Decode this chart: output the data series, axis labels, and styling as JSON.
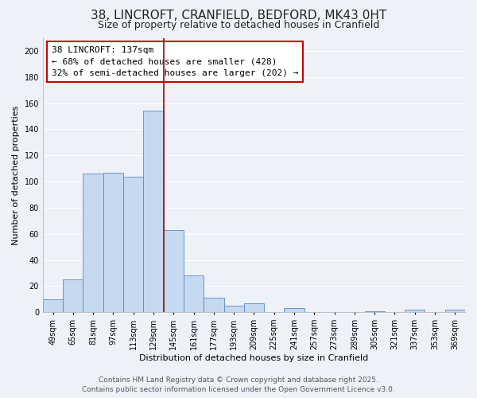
{
  "title": "38, LINCROFT, CRANFIELD, BEDFORD, MK43 0HT",
  "subtitle": "Size of property relative to detached houses in Cranfield",
  "xlabel": "Distribution of detached houses by size in Cranfield",
  "ylabel": "Number of detached properties",
  "bar_labels": [
    "49sqm",
    "65sqm",
    "81sqm",
    "97sqm",
    "113sqm",
    "129sqm",
    "145sqm",
    "161sqm",
    "177sqm",
    "193sqm",
    "209sqm",
    "225sqm",
    "241sqm",
    "257sqm",
    "273sqm",
    "289sqm",
    "305sqm",
    "321sqm",
    "337sqm",
    "353sqm",
    "369sqm"
  ],
  "bar_values": [
    10,
    25,
    106,
    107,
    104,
    154,
    63,
    28,
    11,
    5,
    7,
    0,
    3,
    0,
    0,
    0,
    1,
    0,
    2,
    0,
    2
  ],
  "bar_color": "#c6d9f0",
  "bar_edge_color": "#5a8ac6",
  "ylim": [
    0,
    210
  ],
  "yticks": [
    0,
    20,
    40,
    60,
    80,
    100,
    120,
    140,
    160,
    180,
    200
  ],
  "vline_x": 5.5,
  "vline_color": "#aa0000",
  "annotation_title": "38 LINCROFT: 137sqm",
  "annotation_line1": "← 68% of detached houses are smaller (428)",
  "annotation_line2": "32% of semi-detached houses are larger (202) →",
  "footer_line1": "Contains HM Land Registry data © Crown copyright and database right 2025.",
  "footer_line2": "Contains public sector information licensed under the Open Government Licence v3.0.",
  "background_color": "#eef2f8",
  "grid_color": "#ffffff",
  "title_fontsize": 11,
  "subtitle_fontsize": 9,
  "axis_label_fontsize": 8,
  "tick_fontsize": 7,
  "annotation_fontsize": 8,
  "footer_fontsize": 6.5
}
